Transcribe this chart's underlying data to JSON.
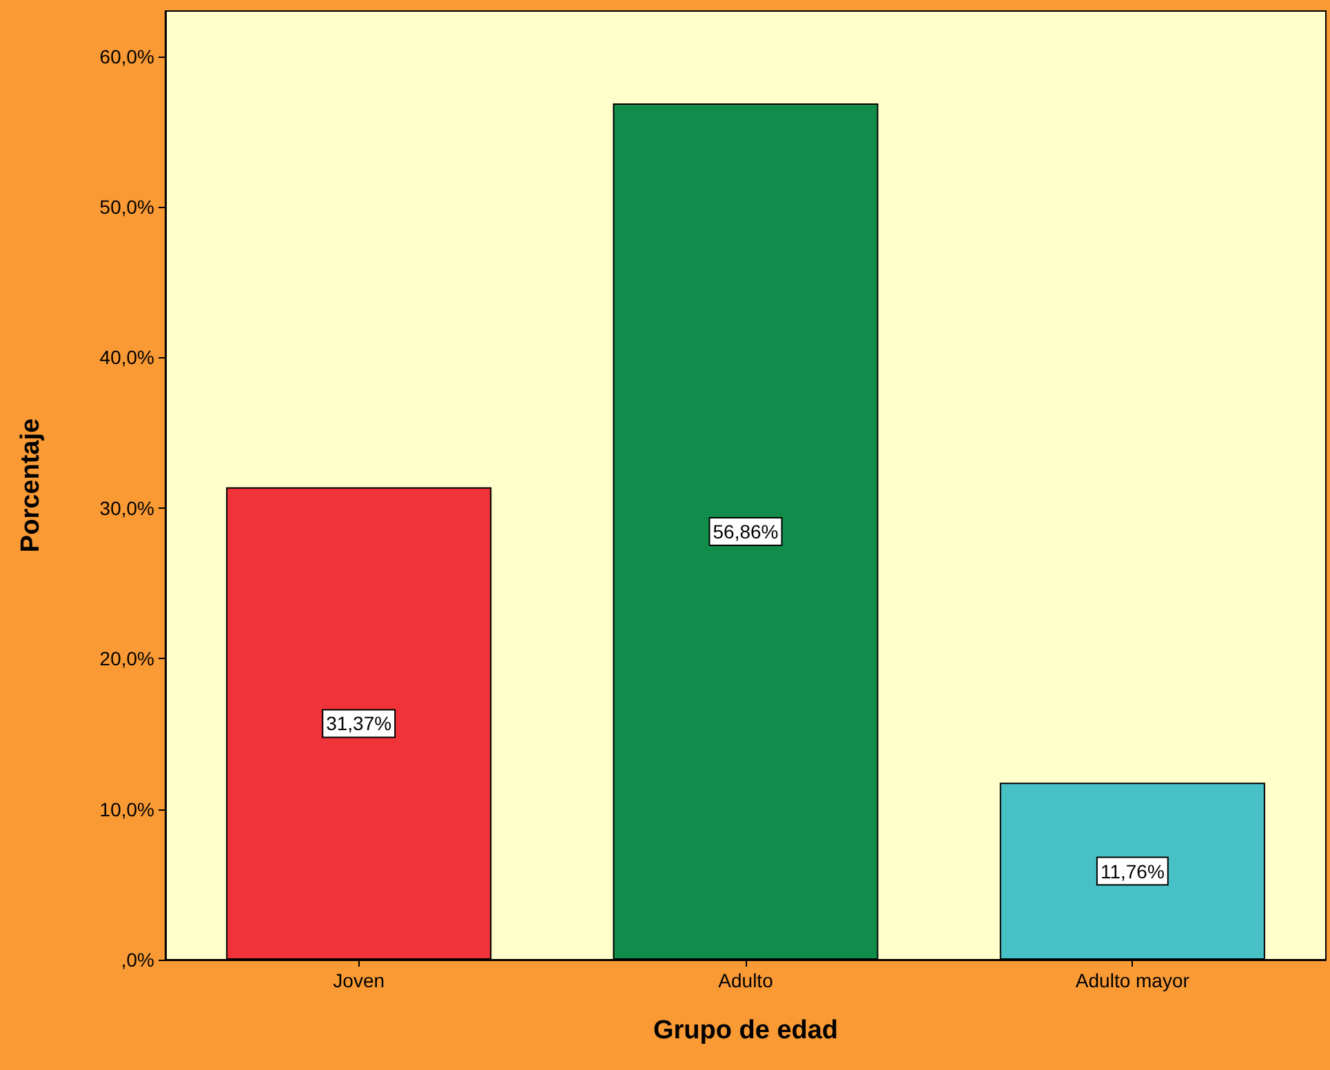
{
  "chart_data": {
    "type": "bar",
    "xlabel": "Grupo de edad",
    "ylabel": "Porcentaje",
    "categories": [
      "Joven",
      "Adulto",
      "Adulto mayor"
    ],
    "values": [
      31.37,
      56.86,
      11.76
    ],
    "colors": [
      "#ef3338",
      "#118c4a",
      "#48c1c6"
    ],
    "value_labels": [
      "31,37%",
      "56,86%",
      "11,76%"
    ],
    "ylim": [
      0,
      63
    ],
    "yticks": [
      {
        "value": 0,
        "label": ",0%"
      },
      {
        "value": 10,
        "label": "10,0%"
      },
      {
        "value": 20,
        "label": "20,0%"
      },
      {
        "value": 30,
        "label": "30,0%"
      },
      {
        "value": 40,
        "label": "40,0%"
      },
      {
        "value": 50,
        "label": "50,0%"
      },
      {
        "value": 60,
        "label": "60,0%"
      }
    ],
    "grid": false
  }
}
